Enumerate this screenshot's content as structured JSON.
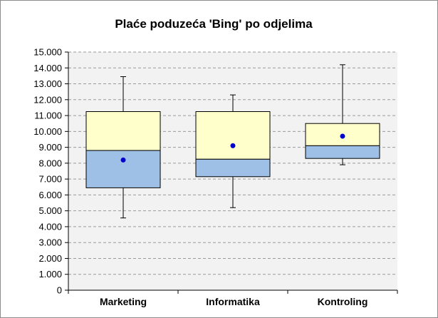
{
  "chart_data": {
    "type": "box",
    "title": "Plaće poduzeća 'Bing' po odjelima",
    "xlabel": "",
    "ylabel": "",
    "ylim": [
      0,
      15000
    ],
    "yticks": [
      {
        "value": 0,
        "label": "0"
      },
      {
        "value": 1000,
        "label": "1.000"
      },
      {
        "value": 2000,
        "label": "2.000"
      },
      {
        "value": 3000,
        "label": "3.000"
      },
      {
        "value": 4000,
        "label": "4.000"
      },
      {
        "value": 5000,
        "label": "5.000"
      },
      {
        "value": 6000,
        "label": "6.000"
      },
      {
        "value": 7000,
        "label": "7.000"
      },
      {
        "value": 8000,
        "label": "8.000"
      },
      {
        "value": 9000,
        "label": "9.000"
      },
      {
        "value": 10000,
        "label": "10.000"
      },
      {
        "value": 11000,
        "label": "11.000"
      },
      {
        "value": 12000,
        "label": "12.000"
      },
      {
        "value": 13000,
        "label": "13.000"
      },
      {
        "value": 14000,
        "label": "14.000"
      },
      {
        "value": 15000,
        "label": "15.000"
      }
    ],
    "grid": true,
    "legend": "none",
    "categories": [
      "Marketing",
      "Informatika",
      "Kontroling"
    ],
    "boxes": [
      {
        "category": "Marketing",
        "min": 4550,
        "q1": 6450,
        "median": 8800,
        "q3": 11250,
        "max": 13450,
        "mean": 8200
      },
      {
        "category": "Informatika",
        "min": 5200,
        "q1": 7150,
        "median": 8250,
        "q3": 11250,
        "max": 12300,
        "mean": 9100
      },
      {
        "category": "Kontroling",
        "min": 7900,
        "q1": 8300,
        "median": 9100,
        "q3": 10500,
        "max": 14200,
        "mean": 9700
      }
    ],
    "colors": {
      "plot_background": "#f2f2f2",
      "lower_box": "#9fc0e6",
      "upper_box": "#ffffcc",
      "mean_marker": "#0000cc",
      "grid": "#9a9a9a",
      "axis": "#000000"
    }
  }
}
